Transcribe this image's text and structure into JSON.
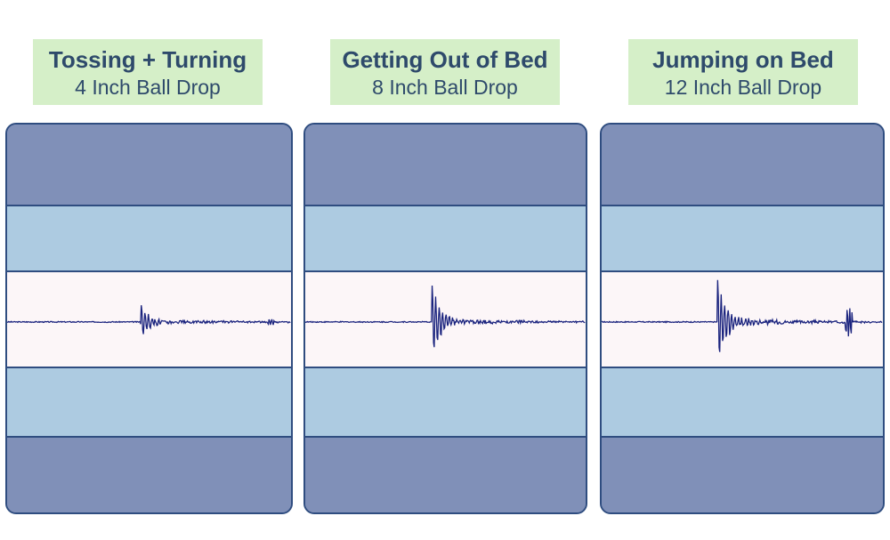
{
  "panels": [
    {
      "title": "Tossing + Turning",
      "subtitle": "4 Inch Ball Drop",
      "wave": {
        "spike_at": 0.47,
        "amplitude": 0.45,
        "decay": 0.12,
        "tail_noise": 0.05,
        "secondary_at": 0.93,
        "secondary_amp": 0.06
      }
    },
    {
      "title": "Getting Out of Bed",
      "subtitle": "8 Inch Ball Drop",
      "wave": {
        "spike_at": 0.45,
        "amplitude": 0.92,
        "decay": 0.1,
        "tail_noise": 0.06,
        "secondary_at": 0.77,
        "secondary_amp": 0.04
      }
    },
    {
      "title": "Jumping on Bed",
      "subtitle": "12 Inch Ball Drop",
      "wave": {
        "spike_at": 0.41,
        "amplitude": 1.0,
        "decay": 0.09,
        "tail_noise": 0.08,
        "secondary_at": 0.88,
        "secondary_amp": 0.3
      }
    }
  ],
  "colors": {
    "label_bg": "#d5efc8",
    "label_text": "#2e4a6b",
    "outer_layer": "#8090b8",
    "inner_layer": "#adcbe1",
    "core_layer": "#fcf6f8",
    "border": "#2f4d80",
    "wave": "#1a237e"
  }
}
